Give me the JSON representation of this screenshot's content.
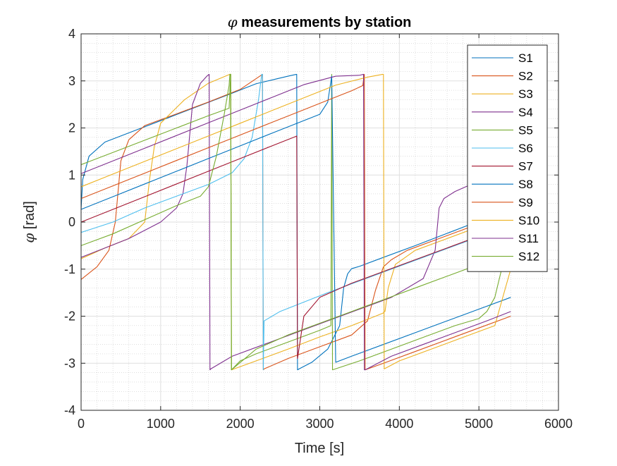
{
  "chart_data": {
    "type": "line",
    "title": "φ measurements by station",
    "title_symbol": "φ",
    "title_rest": " measurements by station",
    "xlabel": "Time [s]",
    "ylabel": "[rad]",
    "ylabel_symbol": "φ",
    "xlim": [
      0,
      6000
    ],
    "ylim": [
      -4,
      4
    ],
    "xticks": [
      0,
      1000,
      2000,
      3000,
      4000,
      5000,
      6000
    ],
    "yticks": [
      -4,
      -3,
      -2,
      -1,
      0,
      1,
      2,
      3,
      4
    ],
    "grid": true,
    "minor_grid": true,
    "legend_position": "top-right",
    "series": [
      {
        "name": "S1",
        "color": "#0072BD",
        "x": [
          0,
          20,
          100,
          300,
          700,
          1100,
          1500,
          1900,
          2200,
          2450,
          2600,
          2680,
          2710,
          2720,
          2740,
          2900,
          3100,
          3250,
          3300,
          3350,
          3400,
          3500,
          3800,
          4200,
          4600,
          5000,
          5400
        ],
        "y": [
          0.27,
          0.9,
          1.4,
          1.7,
          1.96,
          2.22,
          2.48,
          2.74,
          2.94,
          3.04,
          3.1,
          3.13,
          3.14,
          -3.14,
          -3.12,
          -2.98,
          -2.7,
          -2.2,
          -1.4,
          -1.1,
          -0.99,
          -0.94,
          -0.75,
          -0.5,
          -0.24,
          0.02,
          0.28
        ]
      },
      {
        "name": "S2",
        "color": "#D95319",
        "x": [
          0,
          200,
          350,
          430,
          500,
          600,
          800,
          1200,
          1600,
          2000,
          2280,
          2290,
          2300,
          2600,
          3000,
          3400,
          3600,
          3700,
          3800,
          3900,
          4100,
          4500,
          4900,
          5300,
          5430
        ],
        "y": [
          -1.22,
          -0.95,
          -0.6,
          0.0,
          1.3,
          1.75,
          2.05,
          2.3,
          2.55,
          2.82,
          3.14,
          -3.14,
          -3.12,
          -2.9,
          -2.65,
          -2.4,
          -2.1,
          -1.45,
          -0.95,
          -0.8,
          -0.6,
          -0.35,
          -0.1,
          0.15,
          0.22
        ]
      },
      {
        "name": "S3",
        "color": "#EDB120",
        "x": [
          0,
          300,
          600,
          800,
          860,
          920,
          1000,
          1300,
          1600,
          1870,
          1880,
          1890,
          2200,
          2600,
          3000,
          3400,
          3700,
          3800,
          3810,
          3820,
          3860,
          3950,
          4200,
          4600,
          5000,
          5400
        ],
        "y": [
          -0.78,
          -0.55,
          -0.35,
          0.0,
          0.9,
          1.6,
          2.1,
          2.6,
          2.95,
          3.14,
          3.14,
          -3.14,
          -2.95,
          -2.7,
          -2.44,
          -2.2,
          -2.0,
          -1.93,
          -1.9,
          -1.9,
          -1.4,
          -0.9,
          -0.6,
          -0.35,
          -0.1,
          0.16
        ]
      },
      {
        "name": "S4",
        "color": "#7E2F8E",
        "x": [
          0,
          300,
          600,
          1000,
          1200,
          1280,
          1330,
          1400,
          1500,
          1580,
          1610,
          1620,
          1630,
          1900,
          2300,
          2700,
          3100,
          3500,
          3900,
          4300,
          4450,
          4500,
          4560,
          4700,
          4900,
          5300
        ],
        "y": [
          -0.75,
          -0.55,
          -0.35,
          0.0,
          0.3,
          0.6,
          1.2,
          2.5,
          2.95,
          3.1,
          3.14,
          -3.14,
          -3.12,
          -2.85,
          -2.6,
          -2.35,
          -2.1,
          -1.85,
          -1.6,
          -1.2,
          -0.6,
          0.3,
          0.5,
          0.65,
          0.8,
          1.03
        ]
      },
      {
        "name": "S5",
        "color": "#77AC30",
        "x": [
          0,
          400,
          800,
          1200,
          1600,
          1860,
          1880,
          1890,
          2000,
          2200,
          2600,
          3000,
          3140,
          3150,
          3160,
          3500,
          3900,
          4300,
          4700,
          5000,
          5100,
          5200,
          5300
        ],
        "y": [
          1.22,
          1.48,
          1.74,
          2.0,
          2.26,
          2.42,
          3.14,
          -3.14,
          -2.95,
          -2.8,
          -2.55,
          -2.3,
          -2.2,
          3.14,
          -3.14,
          -2.95,
          -2.7,
          -2.45,
          -2.2,
          -2.05,
          -1.9,
          -1.6,
          -0.9
        ]
      },
      {
        "name": "S6",
        "color": "#4DBEEE",
        "x": [
          0,
          400,
          800,
          1200,
          1600,
          1900,
          2050,
          2150,
          2230,
          2270,
          2280,
          2290,
          2300,
          2500,
          2800,
          3100,
          3500,
          3900,
          4300,
          4700,
          5100,
          5400
        ],
        "y": [
          -0.22,
          0.0,
          0.3,
          0.55,
          0.8,
          1.05,
          1.35,
          1.8,
          2.6,
          3.14,
          3.14,
          -3.14,
          -2.1,
          -1.9,
          -1.7,
          -1.5,
          -1.25,
          -1.0,
          -0.75,
          -0.5,
          -0.25,
          -0.05
        ]
      },
      {
        "name": "S7",
        "color": "#A2142F",
        "x": [
          0,
          400,
          800,
          1200,
          1600,
          2000,
          2400,
          2700,
          2710,
          2720,
          2800,
          3000,
          3400,
          3800,
          4200,
          4600,
          5000
        ],
        "y": [
          0.0,
          0.27,
          0.54,
          0.81,
          1.08,
          1.35,
          1.62,
          1.82,
          1.83,
          -2.9,
          -2.0,
          -1.6,
          -1.3,
          -1.05,
          -0.8,
          -0.55,
          -0.3
        ]
      },
      {
        "name": "S8",
        "color": "#0072BD",
        "x": [
          0,
          400,
          800,
          1200,
          1600,
          2000,
          2400,
          2700,
          3000,
          3100,
          3150,
          3200,
          3400,
          3800,
          4200,
          4600,
          5000,
          5400
        ],
        "y": [
          0.27,
          0.54,
          0.81,
          1.08,
          1.35,
          1.62,
          1.89,
          2.09,
          2.29,
          2.55,
          3.1,
          -2.98,
          -2.85,
          -2.6,
          -2.35,
          -2.1,
          -1.85,
          -1.6
        ]
      },
      {
        "name": "S9",
        "color": "#D95319",
        "x": [
          0,
          400,
          800,
          1200,
          1600,
          2000,
          2400,
          2700,
          3100,
          3400,
          3540,
          3560,
          3570,
          3800,
          4200,
          4600,
          5000,
          5400
        ],
        "y": [
          0.5,
          0.77,
          1.04,
          1.31,
          1.58,
          1.85,
          2.12,
          2.32,
          2.59,
          2.79,
          2.9,
          3.14,
          -3.14,
          -3.0,
          -2.75,
          -2.5,
          -2.25,
          -2.0
        ]
      },
      {
        "name": "S10",
        "color": "#EDB120",
        "x": [
          0,
          400,
          800,
          1200,
          1600,
          2000,
          2400,
          2800,
          3200,
          3600,
          3790,
          3800,
          3810,
          4000,
          4400,
          4800,
          5200,
          5400
        ],
        "y": [
          0.75,
          1.02,
          1.29,
          1.56,
          1.83,
          2.1,
          2.37,
          2.64,
          2.91,
          3.08,
          3.14,
          3.14,
          -3.12,
          -2.95,
          -2.7,
          -2.45,
          -2.2,
          -1.0
        ]
      },
      {
        "name": "S11",
        "color": "#7E2F8E",
        "x": [
          0,
          400,
          800,
          1200,
          1600,
          2000,
          2400,
          2800,
          3200,
          3500,
          3550,
          3560,
          3570,
          3900,
          4300,
          4700,
          5100,
          5400
        ],
        "y": [
          1.03,
          1.3,
          1.57,
          1.84,
          2.11,
          2.38,
          2.65,
          2.92,
          3.1,
          3.12,
          3.14,
          -3.14,
          -3.14,
          -2.85,
          -2.6,
          -2.35,
          -2.1,
          -1.9
        ]
      },
      {
        "name": "S12",
        "color": "#77AC30",
        "x": [
          0,
          400,
          800,
          1200,
          1500,
          1600,
          1700,
          1800,
          1860,
          1870,
          1880,
          1890,
          2200,
          2600,
          3000,
          3400,
          3800,
          4200,
          4600,
          5000,
          5300
        ],
        "y": [
          -0.5,
          -0.25,
          0.05,
          0.35,
          0.55,
          0.75,
          1.4,
          2.3,
          2.9,
          3.14,
          3.14,
          -3.14,
          -2.7,
          -2.4,
          -2.15,
          -1.9,
          -1.65,
          -1.4,
          -1.15,
          -0.9,
          -0.7
        ]
      }
    ]
  }
}
